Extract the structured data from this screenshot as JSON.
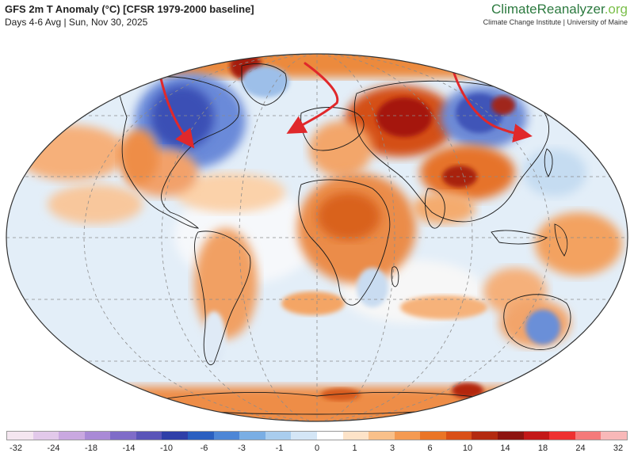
{
  "header": {
    "title": "GFS 2m T Anomaly (°C) [CFSR 1979-2000 baseline]",
    "subtitle": "Days 4-6 Avg | Sun, Nov 30, 2025"
  },
  "brand": {
    "name_main": "ClimateReanalyzer",
    "name_suffix": ".org",
    "tagline": "Climate Change Institute | University of Maine"
  },
  "colorbar": {
    "colors": [
      "#f4e6f0",
      "#e2c9ea",
      "#c9a8e0",
      "#a98ad6",
      "#7f6cc8",
      "#5a55b8",
      "#2f3fa8",
      "#2a5fc0",
      "#4d86d6",
      "#7aaee4",
      "#a9cdee",
      "#d4e6f6",
      "#ffffff",
      "#fde3c8",
      "#f9c08a",
      "#f49a52",
      "#ea7526",
      "#d94f17",
      "#b32a10",
      "#8c1410",
      "#c31818",
      "#ee3030",
      "#f47a7a",
      "#f8b8b8"
    ],
    "ticks": [
      "-32",
      "-24",
      "-18",
      "-14",
      "-10",
      "-6",
      "-3",
      "-1",
      "0",
      "1",
      "3",
      "6",
      "10",
      "14",
      "18",
      "24",
      "32"
    ]
  },
  "map": {
    "projection": "Robinson",
    "arrow_color": "#e0282b",
    "ocean_color": "#dce9f5"
  }
}
